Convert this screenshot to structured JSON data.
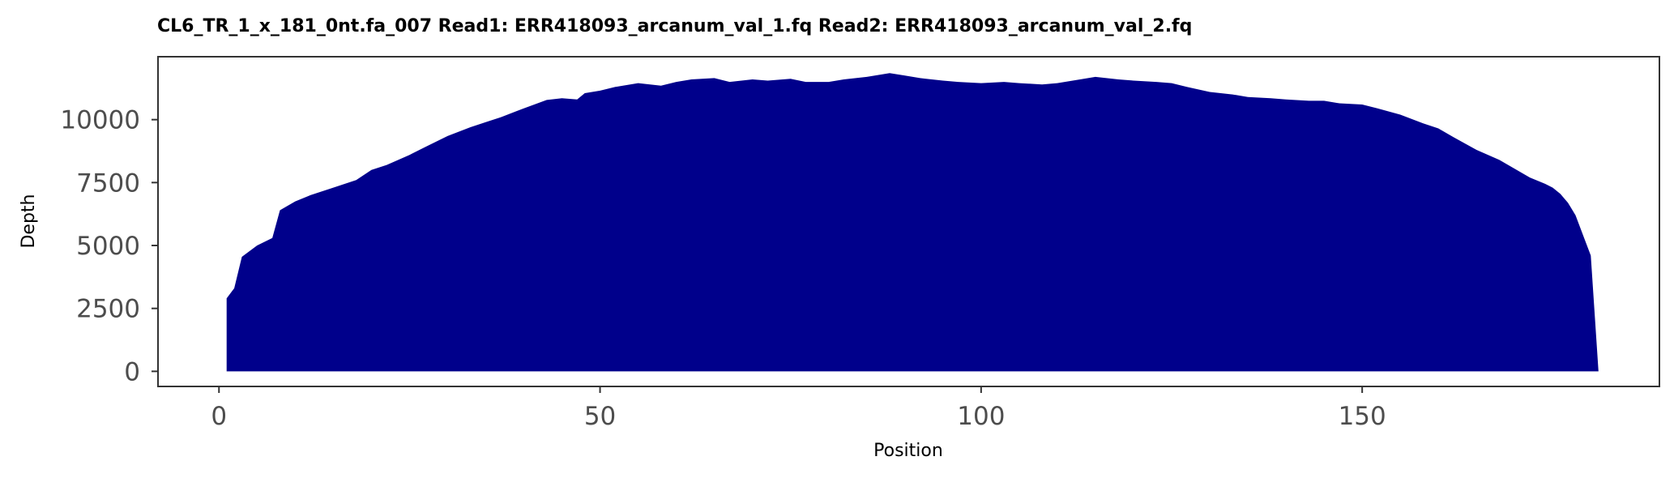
{
  "chart_data": {
    "type": "area",
    "title": "CL6_TR_1_x_181_0nt.fa_007   Read1: ERR418093_arcanum_val_1.fq   Read2: ERR418093_arcanum_val_2.fq",
    "xlabel": "Position",
    "ylabel": "Depth",
    "xlim": [
      -8,
      189
    ],
    "ylim": [
      -600,
      12500
    ],
    "x_ticks": [
      0,
      50,
      100,
      150
    ],
    "y_ticks": [
      0,
      2500,
      5000,
      7500,
      10000
    ],
    "grid": false,
    "legend": "none",
    "fill_color": "#00008b",
    "x": [
      1,
      2,
      3,
      5,
      7,
      8,
      10,
      12,
      15,
      18,
      20,
      22,
      25,
      27,
      30,
      33,
      35,
      37,
      40,
      43,
      45,
      47,
      48,
      50,
      52,
      55,
      58,
      60,
      62,
      65,
      67,
      70,
      72,
      75,
      77,
      80,
      82,
      85,
      88,
      90,
      92,
      95,
      97,
      100,
      103,
      105,
      108,
      110,
      113,
      115,
      118,
      120,
      123,
      125,
      127,
      130,
      133,
      135,
      138,
      140,
      143,
      145,
      147,
      150,
      152,
      155,
      158,
      160,
      162,
      165,
      168,
      170,
      172,
      174,
      175,
      176,
      177,
      178,
      179,
      180,
      181
    ],
    "y": [
      2900,
      3300,
      4550,
      5000,
      5300,
      6400,
      6750,
      7000,
      7300,
      7600,
      8000,
      8200,
      8600,
      8900,
      9350,
      9700,
      9900,
      10100,
      10450,
      10780,
      10850,
      10800,
      11050,
      11150,
      11300,
      11450,
      11350,
      11500,
      11600,
      11650,
      11500,
      11600,
      11550,
      11620,
      11500,
      11500,
      11600,
      11700,
      11850,
      11750,
      11650,
      11550,
      11500,
      11450,
      11500,
      11450,
      11400,
      11450,
      11600,
      11700,
      11600,
      11550,
      11500,
      11450,
      11300,
      11100,
      11000,
      10900,
      10850,
      10800,
      10750,
      10750,
      10650,
      10600,
      10450,
      10200,
      9850,
      9650,
      9300,
      8800,
      8400,
      8050,
      7700,
      7450,
      7300,
      7050,
      6700,
      6200,
      5400,
      4600,
      0
    ]
  }
}
